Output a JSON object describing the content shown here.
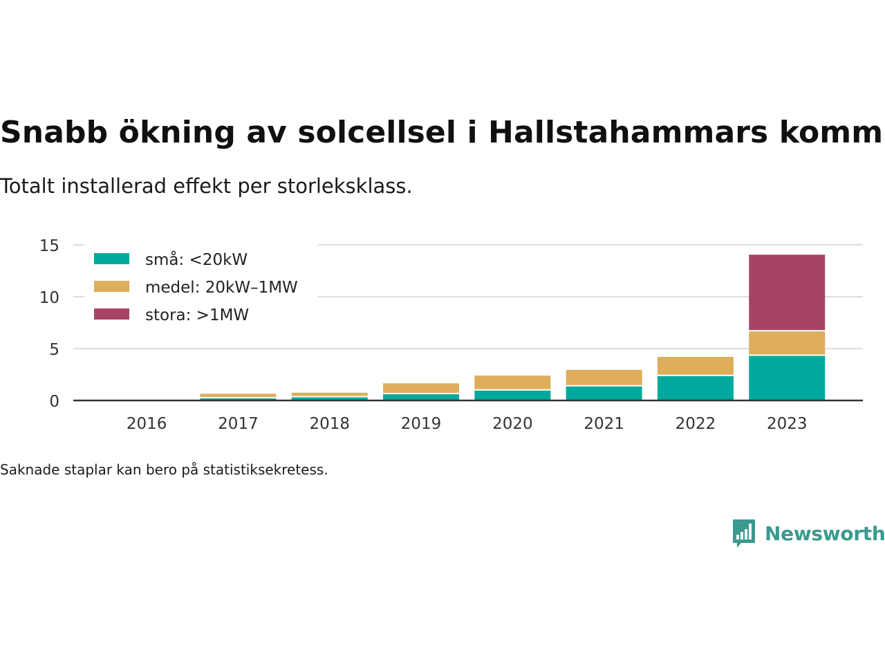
{
  "header": {
    "title": "Snabb ökning av solcellsel i Hallstahammars kommun",
    "subtitle": "Totalt installerad effekt per storleksklass."
  },
  "footer": {
    "note": "Saknade staplar kan bero på statistiksekretess.",
    "brand": "Newsworthy",
    "brand_icon": "bar-chart-speech-bubble-icon"
  },
  "colors": {
    "sma": "#00a99d",
    "medel": "#deae5b",
    "stora": "#a84367",
    "axis": "#333333",
    "grid": "#dddddd",
    "brand": "#3a9a8e"
  },
  "chart_data": {
    "type": "bar",
    "stacked": true,
    "categories": [
      "2016",
      "2017",
      "2018",
      "2019",
      "2020",
      "2021",
      "2022",
      "2023"
    ],
    "series": [
      {
        "name": "små: <20kW",
        "color": "#00a99d",
        "values": [
          0.05,
          0.2,
          0.3,
          0.6,
          0.95,
          1.35,
          2.35,
          4.3
        ]
      },
      {
        "name": "medel: 20kW–1MW",
        "color": "#deae5b",
        "values": [
          0.0,
          0.45,
          0.45,
          1.05,
          1.45,
          1.6,
          1.85,
          2.35
        ]
      },
      {
        "name": "stora: >1MW",
        "color": "#a84367",
        "values": [
          0,
          0,
          0,
          0,
          0,
          0,
          0,
          7.4
        ]
      }
    ],
    "yticks": [
      0,
      5,
      10,
      15
    ],
    "ylim": [
      0,
      15
    ],
    "grid": true,
    "legend_position": "top-left",
    "xlabel": "",
    "ylabel": ""
  }
}
